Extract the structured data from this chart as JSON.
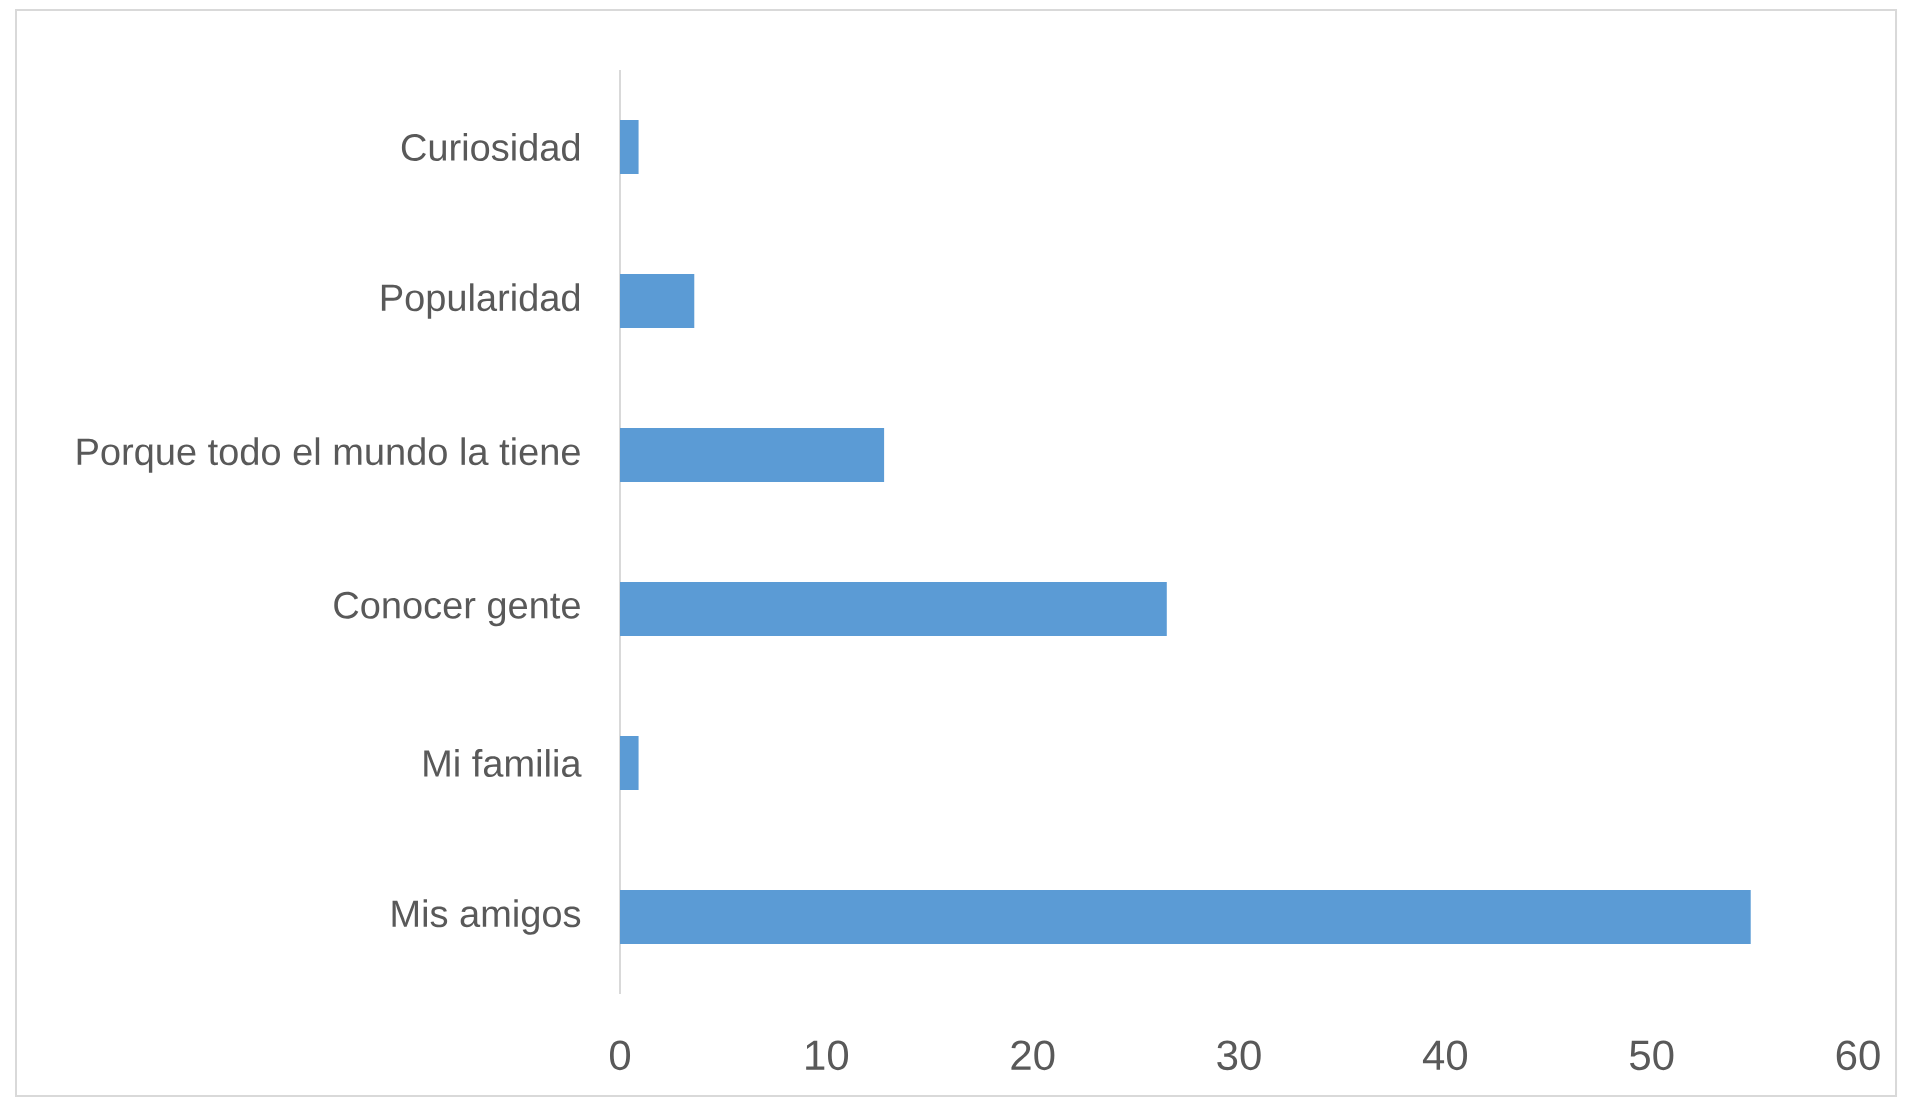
{
  "chart_data": {
    "type": "bar",
    "orientation": "horizontal",
    "categories": [
      "Curiosidad",
      "Popularidad",
      "Porque todo el mundo la tiene",
      "Conocer gente",
      "Mi familia",
      "Mis amigos"
    ],
    "values": [
      0.9,
      3.6,
      12.8,
      26.5,
      0.9,
      54.8
    ],
    "color": "#5b9bd5",
    "xlim": [
      0,
      60
    ],
    "xticks": [
      0,
      10,
      20,
      30,
      40,
      50,
      60
    ]
  }
}
